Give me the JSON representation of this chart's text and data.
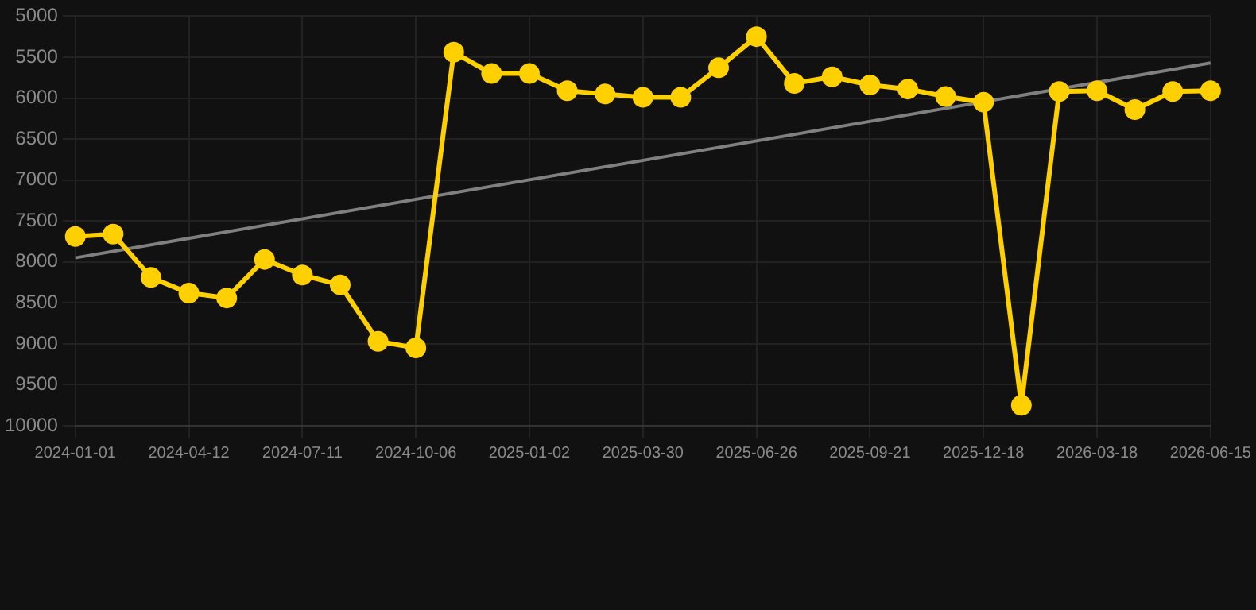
{
  "chart_data": {
    "type": "line",
    "categories": [
      "2024-01-01",
      null,
      null,
      "2024-04-12",
      null,
      null,
      "2024-07-11",
      null,
      null,
      "2024-10-06",
      null,
      null,
      "2025-01-02",
      null,
      null,
      "2025-03-30",
      null,
      null,
      "2025-06-26",
      null,
      null,
      "2025-09-21",
      null,
      null,
      "2025-12-18",
      null,
      null,
      "2026-03-18",
      null,
      null,
      "2026-06-15"
    ],
    "series": [
      {
        "color": "#ffd000",
        "marker": "circle",
        "values": [
          7690,
          7660,
          8190,
          8380,
          8440,
          7970,
          8160,
          8280,
          8970,
          9050,
          5440,
          5700,
          5700,
          5910,
          5950,
          5990,
          5990,
          5630,
          5250,
          5820,
          5740,
          5840,
          5890,
          5980,
          6050,
          9750,
          5920,
          5910,
          6140,
          5920,
          5910
        ]
      },
      {
        "type": "line",
        "color": "#808080",
        "marker": "none",
        "values": [
          7950,
          null,
          null,
          null,
          null,
          null,
          null,
          null,
          null,
          null,
          null,
          null,
          null,
          null,
          null,
          null,
          null,
          null,
          null,
          null,
          null,
          null,
          null,
          null,
          null,
          null,
          null,
          null,
          null,
          null,
          5570
        ]
      }
    ],
    "ylim": [
      10000,
      5000
    ],
    "yticks": [
      5000,
      5500,
      6000,
      6500,
      7000,
      7500,
      8000,
      8500,
      9000,
      9500,
      10000
    ],
    "grid": true,
    "legend": false
  }
}
